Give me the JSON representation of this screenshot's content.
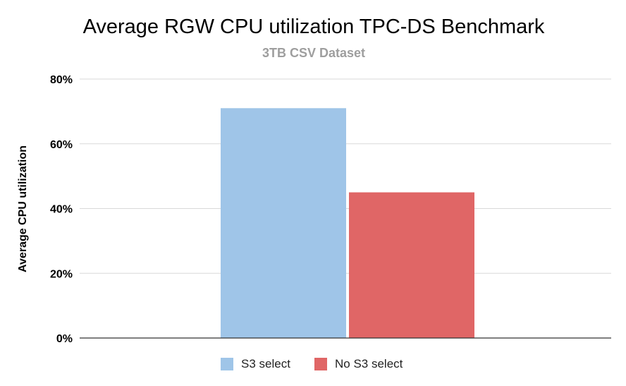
{
  "chart_data": {
    "type": "bar",
    "title": "Average RGW CPU utilization TPC-DS Benchmark",
    "subtitle": "3TB CSV Dataset",
    "xlabel": "",
    "ylabel": "Average CPU utilization",
    "ylim": [
      0,
      80
    ],
    "yticks": [
      0,
      20,
      40,
      60,
      80
    ],
    "ytick_labels": [
      "0%",
      "20%",
      "40%",
      "60%",
      "80%"
    ],
    "categories": [
      ""
    ],
    "series": [
      {
        "name": "S3 select",
        "values": [
          71
        ],
        "color": "#9fc5e8"
      },
      {
        "name": "No S3 select",
        "values": [
          45
        ],
        "color": "#e06666"
      }
    ],
    "grid": true,
    "legend_position": "bottom"
  }
}
